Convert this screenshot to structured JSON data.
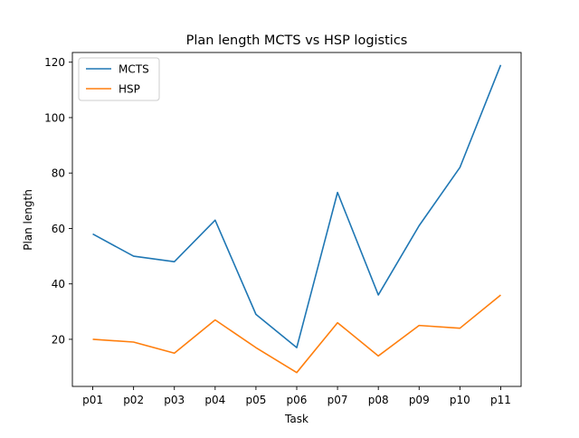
{
  "chart_data": {
    "type": "line",
    "title": "Plan length MCTS vs HSP logistics",
    "xlabel": "Task",
    "ylabel": "Plan length",
    "categories": [
      "p01",
      "p02",
      "p03",
      "p04",
      "p05",
      "p06",
      "p07",
      "p08",
      "p09",
      "p10",
      "p11"
    ],
    "ylim": [
      3,
      123.5
    ],
    "yticks": [
      20,
      40,
      60,
      80,
      100,
      120
    ],
    "grid": false,
    "legend": "top-left",
    "series": [
      {
        "name": "MCTS",
        "color": "#1f77b4",
        "values": [
          58,
          50,
          48,
          63,
          29,
          17,
          73,
          36,
          61,
          82,
          119
        ]
      },
      {
        "name": "HSP",
        "color": "#ff7f0e",
        "values": [
          20,
          19,
          15,
          27,
          17,
          8,
          26,
          14,
          25,
          24,
          36
        ]
      }
    ]
  }
}
